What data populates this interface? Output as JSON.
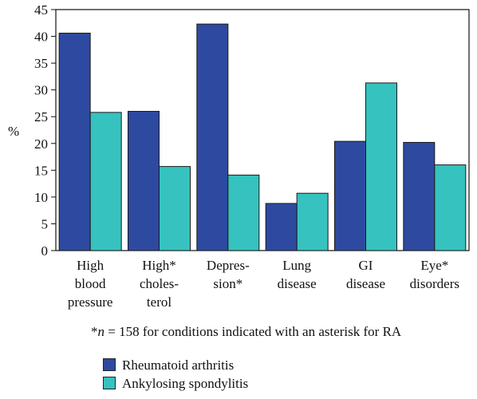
{
  "chart_data": {
    "type": "bar",
    "ylabel": "%",
    "ylim": [
      0,
      45
    ],
    "yticks": [
      "0",
      "5",
      "10",
      "15",
      "20",
      "25",
      "30",
      "35",
      "40",
      "45"
    ],
    "categories": [
      [
        "High",
        "blood",
        "pressure"
      ],
      [
        "High*",
        "choles-",
        "terol"
      ],
      [
        "Depres-",
        "sion*"
      ],
      [
        "Lung",
        "disease"
      ],
      [
        "GI",
        "disease"
      ],
      [
        "Eye*",
        "disorders"
      ]
    ],
    "series": [
      {
        "name": "Rheumatoid arthritis",
        "color": "#2d4aa0",
        "values": [
          40.6,
          26.0,
          42.3,
          8.8,
          20.4,
          20.2
        ]
      },
      {
        "name": "Ankylosing spondylitis",
        "color": "#36c2be",
        "values": [
          25.8,
          15.7,
          14.1,
          10.7,
          31.3,
          16.0
        ]
      }
    ],
    "grid": false,
    "legend_placement": "bottom-left",
    "footnote_mark": "*",
    "footnote_n": "n",
    "footnote_text": "= 158 for conditions indicated with an asterisk for RA"
  }
}
